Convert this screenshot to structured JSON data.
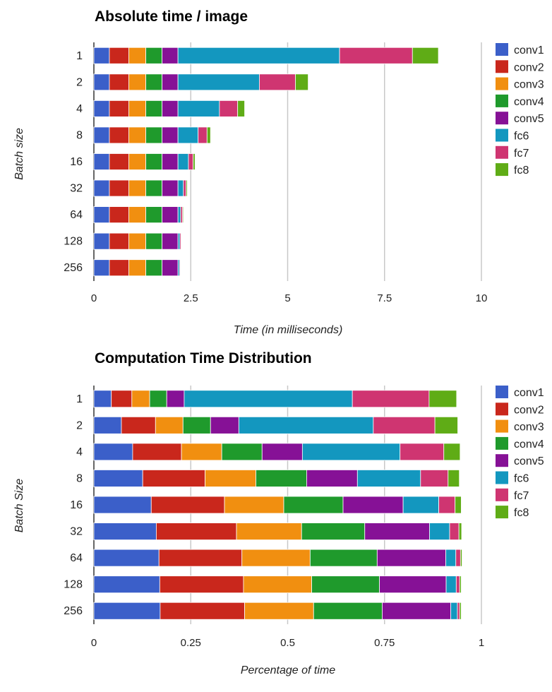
{
  "colors": {
    "conv1": "#3b5fc9",
    "conv2": "#c9271c",
    "conv3": "#f18f10",
    "conv4": "#1f9a2c",
    "conv5": "#861196",
    "fc6": "#1397bf",
    "fc7": "#cf3571",
    "fc8": "#5fac16"
  },
  "chart_data": [
    {
      "type": "bar",
      "orientation": "horizontal",
      "stacked": true,
      "title": "Absolute time / image",
      "xlabel": "Time (in milliseconds)",
      "ylabel": "Batch size",
      "xlim": [
        0,
        10
      ],
      "x_ticks": [
        "0",
        "2.5",
        "5",
        "7.5",
        "10"
      ],
      "categories": [
        "1",
        "2",
        "4",
        "8",
        "16",
        "32",
        "64",
        "128",
        "256"
      ],
      "legend_position": "right",
      "series": [
        {
          "name": "conv1",
          "values": [
            0.4,
            0.4,
            0.4,
            0.4,
            0.4,
            0.4,
            0.4,
            0.4,
            0.4
          ]
        },
        {
          "name": "conv2",
          "values": [
            0.5,
            0.5,
            0.5,
            0.5,
            0.5,
            0.5,
            0.5,
            0.5,
            0.5
          ]
        },
        {
          "name": "conv3",
          "values": [
            0.44,
            0.44,
            0.44,
            0.44,
            0.44,
            0.44,
            0.44,
            0.44,
            0.44
          ]
        },
        {
          "name": "conv4",
          "values": [
            0.42,
            0.42,
            0.42,
            0.42,
            0.42,
            0.42,
            0.42,
            0.42,
            0.42
          ]
        },
        {
          "name": "conv5",
          "values": [
            0.41,
            0.41,
            0.41,
            0.41,
            0.41,
            0.41,
            0.41,
            0.41,
            0.41
          ]
        },
        {
          "name": "fc6",
          "values": [
            4.17,
            2.1,
            1.07,
            0.52,
            0.27,
            0.14,
            0.07,
            0.05,
            0.04
          ]
        },
        {
          "name": "fc7",
          "values": [
            1.88,
            0.93,
            0.47,
            0.23,
            0.12,
            0.07,
            0.05,
            0.03,
            0.02
          ]
        },
        {
          "name": "fc8",
          "values": [
            0.67,
            0.33,
            0.18,
            0.09,
            0.05,
            0.03,
            0.02,
            0.01,
            0.01
          ]
        }
      ]
    },
    {
      "type": "bar",
      "orientation": "horizontal",
      "stacked": true,
      "title": "Computation Time Distribution",
      "xlabel": "Percentage of time",
      "ylabel": "Batch Size",
      "xlim": [
        0,
        1
      ],
      "x_ticks": [
        "0",
        "0.25",
        "0.5",
        "0.75",
        "1"
      ],
      "categories": [
        "1",
        "2",
        "4",
        "8",
        "16",
        "32",
        "64",
        "128",
        "256"
      ],
      "legend_position": "right",
      "series": [
        {
          "name": "conv1",
          "values": [
            0.045,
            0.071,
            0.1,
            0.126,
            0.148,
            0.161,
            0.168,
            0.17,
            0.171
          ]
        },
        {
          "name": "conv2",
          "values": [
            0.053,
            0.088,
            0.126,
            0.161,
            0.189,
            0.207,
            0.214,
            0.216,
            0.218
          ]
        },
        {
          "name": "conv3",
          "values": [
            0.046,
            0.071,
            0.104,
            0.131,
            0.153,
            0.168,
            0.176,
            0.176,
            0.178
          ]
        },
        {
          "name": "conv4",
          "values": [
            0.044,
            0.071,
            0.104,
            0.131,
            0.153,
            0.163,
            0.173,
            0.175,
            0.177
          ]
        },
        {
          "name": "conv5",
          "values": [
            0.045,
            0.073,
            0.104,
            0.131,
            0.155,
            0.167,
            0.177,
            0.172,
            0.177
          ]
        },
        {
          "name": "fc6",
          "values": [
            0.434,
            0.347,
            0.252,
            0.163,
            0.092,
            0.052,
            0.026,
            0.026,
            0.017
          ]
        },
        {
          "name": "fc7",
          "values": [
            0.198,
            0.159,
            0.113,
            0.071,
            0.042,
            0.024,
            0.012,
            0.009,
            0.006
          ]
        },
        {
          "name": "fc8",
          "values": [
            0.071,
            0.059,
            0.042,
            0.029,
            0.016,
            0.007,
            0.004,
            0.004,
            0.004
          ]
        }
      ]
    }
  ]
}
